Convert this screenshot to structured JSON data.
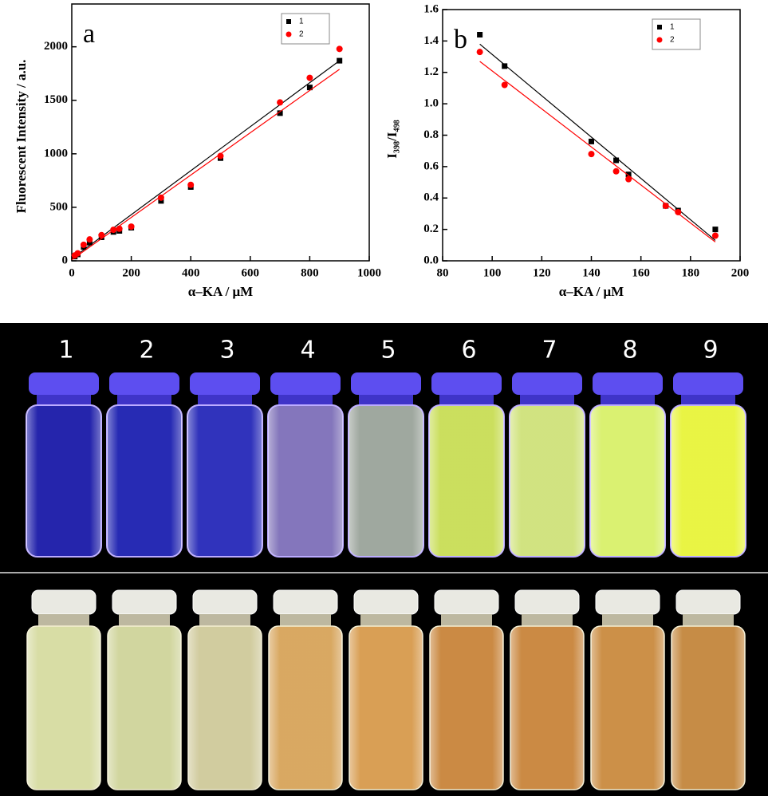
{
  "chart_data": [
    {
      "type": "scatter",
      "annotation": "a",
      "xlabel": "α–KA / μM",
      "ylabel": "Fluorescent Intensity  / a.u.",
      "xlim": [
        0,
        1000
      ],
      "xticks": [
        0,
        200,
        400,
        600,
        800,
        1000
      ],
      "ylim": [
        0,
        2400
      ],
      "yticks": [
        0,
        500,
        1000,
        1500,
        2000
      ],
      "legend": "top-right",
      "x": [
        10,
        20,
        40,
        60,
        100,
        140,
        160,
        200,
        300,
        400,
        500,
        700,
        800,
        900
      ],
      "series": [
        {
          "name": "1",
          "color": "#000000",
          "marker": "square",
          "values": [
            40,
            60,
            130,
            170,
            220,
            270,
            280,
            310,
            560,
            690,
            960,
            1380,
            1620,
            1870
          ],
          "fit_x": [
            0,
            900
          ],
          "fit": [
            20,
            1870
          ]
        },
        {
          "name": "2",
          "color": "#ff0000",
          "marker": "circle",
          "values": [
            50,
            70,
            150,
            200,
            240,
            290,
            300,
            320,
            590,
            710,
            980,
            1480,
            1710,
            1980
          ],
          "fit_x": [
            0,
            900
          ],
          "fit": [
            10,
            1790
          ]
        }
      ]
    },
    {
      "type": "scatter",
      "annotation": "b",
      "xlabel": "α–KA / μM",
      "ylabel": "I₃₉₈/I₄₉₈",
      "xlim": [
        80,
        200
      ],
      "xticks": [
        80,
        100,
        120,
        140,
        160,
        180,
        200
      ],
      "ylim": [
        0,
        1.6
      ],
      "yticks": [
        {
          "value": 0,
          "label": "0.0"
        },
        0.2,
        0.4,
        0.6,
        0.8,
        {
          "value": 1,
          "label": "1.0"
        },
        1.2,
        1.4,
        1.6
      ],
      "legend": "top-right",
      "x": [
        95,
        105,
        140,
        150,
        155,
        170,
        175,
        190
      ],
      "series": [
        {
          "name": "1",
          "color": "#000000",
          "marker": "square",
          "values": [
            1.44,
            1.24,
            0.76,
            0.64,
            0.55,
            0.35,
            0.32,
            0.2
          ],
          "fit_x": [
            95,
            190
          ],
          "fit": [
            1.38,
            0.13
          ]
        },
        {
          "name": "2",
          "color": "#ff0000",
          "marker": "circle",
          "values": [
            1.33,
            1.12,
            0.68,
            0.57,
            0.52,
            0.35,
            0.31,
            0.16
          ],
          "fit_x": [
            95,
            190
          ],
          "fit": [
            1.27,
            0.12
          ]
        }
      ]
    }
  ],
  "photo": {
    "labels": [
      "1",
      "2",
      "3",
      "4",
      "5",
      "6",
      "7",
      "8",
      "9"
    ]
  }
}
